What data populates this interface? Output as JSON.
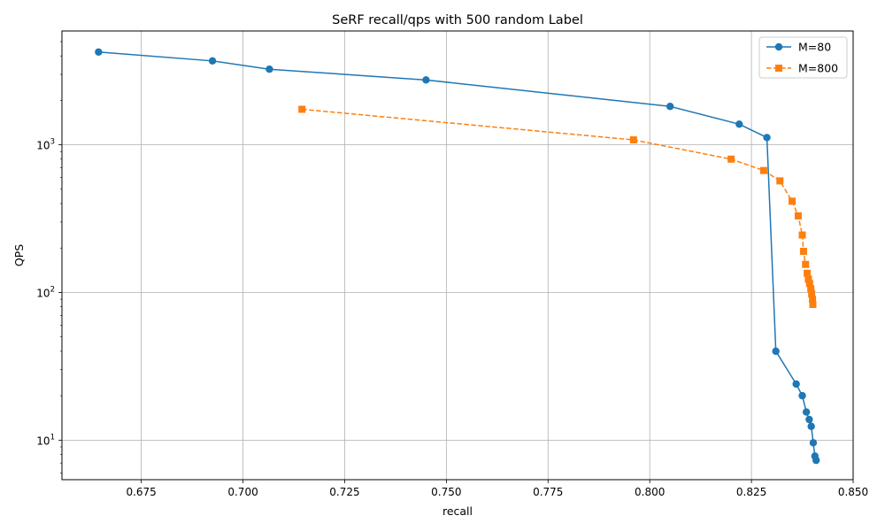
{
  "chart_data": {
    "type": "line",
    "title": "SeRF recall/qps with 500 random Label",
    "xlabel": "recall",
    "ylabel": "QPS",
    "xlim": [
      0.6555,
      0.85
    ],
    "ylim": [
      5.4,
      5900
    ],
    "yscale": "log",
    "grid": true,
    "legend_position": "top-right",
    "x_ticks": [
      0.675,
      0.7,
      0.725,
      0.75,
      0.775,
      0.8,
      0.825,
      0.85
    ],
    "x_tick_labels": [
      "0.675",
      "0.700",
      "0.725",
      "0.750",
      "0.775",
      "0.800",
      "0.825",
      "0.850"
    ],
    "y_ticks": [
      10,
      100,
      1000
    ],
    "y_tick_labels": [
      {
        "base": "10",
        "exp": "1"
      },
      {
        "base": "10",
        "exp": "2"
      },
      {
        "base": "10",
        "exp": "3"
      }
    ],
    "series": [
      {
        "name": "M=80",
        "color": "#1f77b4",
        "marker": "circle",
        "line_style": "solid",
        "x": [
          0.6645,
          0.6925,
          0.7065,
          0.745,
          0.805,
          0.822,
          0.8288,
          0.831,
          0.836,
          0.8375,
          0.8385,
          0.8392,
          0.8397,
          0.8402,
          0.8406,
          0.8409
        ],
        "y": [
          4250,
          3700,
          3250,
          2750,
          1820,
          1380,
          1120,
          40,
          24,
          20,
          15.5,
          13.8,
          12.4,
          9.6,
          7.8,
          7.3
        ]
      },
      {
        "name": "M=800",
        "color": "#ff7f0e",
        "marker": "square",
        "line_style": "dashed",
        "x": [
          0.7145,
          0.796,
          0.82,
          0.828,
          0.832,
          0.835,
          0.8365,
          0.8375,
          0.8378,
          0.8383,
          0.8387,
          0.839,
          0.8393,
          0.8396,
          0.8398,
          0.84,
          0.8401
        ],
        "y": [
          1740,
          1080,
          800,
          670,
          570,
          415,
          330,
          245,
          190,
          155,
          135,
          123,
          115,
          106,
          98,
          90,
          83
        ]
      }
    ]
  }
}
